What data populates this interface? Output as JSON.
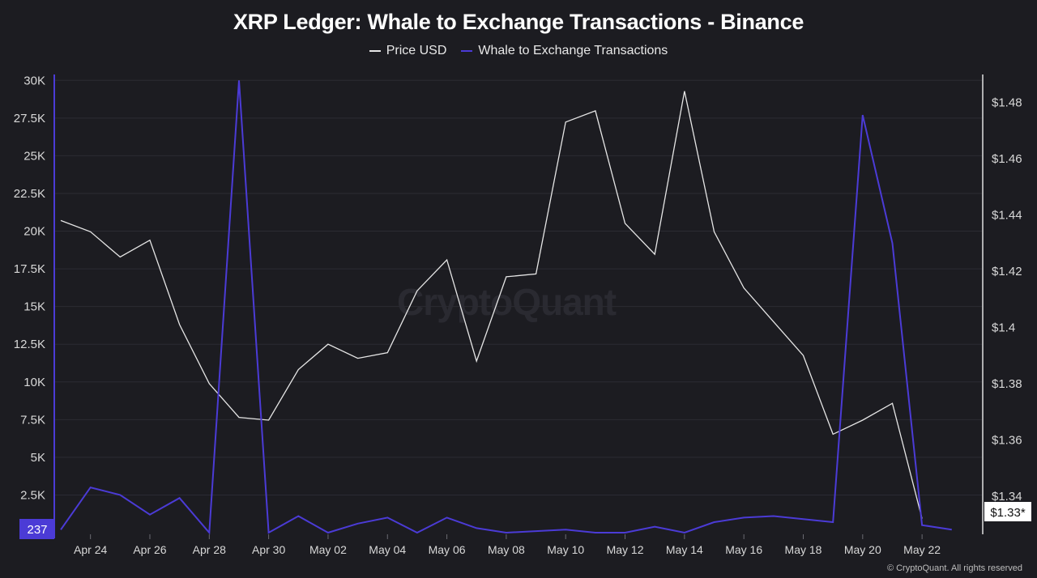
{
  "header": {
    "title": "XRP Ledger: Whale to Exchange Transactions - Binance"
  },
  "legend": {
    "items": [
      {
        "label": "Price USD",
        "color": "#e6e6e6"
      },
      {
        "label": "Whale to Exchange Transactions",
        "color": "#4b3bd6"
      }
    ]
  },
  "watermark": "CryptoQuant",
  "credit": "© CryptoQuant. All rights reserved",
  "chart_data": {
    "type": "line",
    "title": "XRP Ledger: Whale to Exchange Transactions - Binance",
    "xlabel": "",
    "ylabel": "",
    "x": [
      "Apr 23",
      "Apr 24",
      "Apr 25",
      "Apr 26",
      "Apr 27",
      "Apr 28",
      "Apr 29",
      "Apr 30",
      "May 01",
      "May 02",
      "May 03",
      "May 04",
      "May 05",
      "May 06",
      "May 07",
      "May 08",
      "May 09",
      "May 10",
      "May 11",
      "May 12",
      "May 13",
      "May 14",
      "May 15",
      "May 16",
      "May 17",
      "May 18",
      "May 19",
      "May 20",
      "May 21",
      "May 22",
      "May 23"
    ],
    "x_tick_labels": [
      "Apr 24",
      "Apr 26",
      "Apr 28",
      "Apr 30",
      "May 02",
      "May 04",
      "May 06",
      "May 08",
      "May 10",
      "May 12",
      "May 14",
      "May 16",
      "May 18",
      "May 20",
      "May 22"
    ],
    "series": [
      {
        "name": "Price USD",
        "axis": "right",
        "color": "#e6e6e6",
        "values": [
          1.438,
          1.434,
          1.425,
          1.431,
          1.401,
          1.38,
          1.368,
          1.367,
          1.385,
          1.394,
          1.389,
          1.391,
          1.413,
          1.424,
          1.388,
          1.418,
          1.419,
          1.473,
          1.477,
          1.437,
          1.426,
          1.484,
          1.434,
          1.414,
          1.402,
          1.39,
          1.362,
          1.367,
          1.373,
          1.332,
          null
        ]
      },
      {
        "name": "Whale to Exchange Transactions",
        "axis": "left",
        "color": "#4b3bd6",
        "values": [
          200,
          3000,
          2500,
          1200,
          2300,
          0,
          30000,
          0,
          1100,
          0,
          600,
          1000,
          0,
          1000,
          300,
          0,
          100,
          200,
          0,
          0,
          400,
          0,
          700,
          1000,
          1100,
          900,
          700,
          27700,
          19200,
          500,
          200
        ]
      }
    ],
    "y_left": {
      "ylim": [
        0,
        30500
      ],
      "ticks": [
        2500,
        5000,
        7500,
        10000,
        12500,
        15000,
        17500,
        20000,
        22500,
        25000,
        27500,
        30000
      ],
      "tick_labels": [
        "2.5K",
        "5K",
        "7.5K",
        "10K",
        "12.5K",
        "15K",
        "17.5K",
        "20K",
        "22.5K",
        "25K",
        "27.5K",
        "30K"
      ],
      "current_value_label": "237"
    },
    "y_right": {
      "ylim": [
        1.327,
        1.4905
      ],
      "ticks": [
        1.34,
        1.36,
        1.38,
        1.4,
        1.42,
        1.44,
        1.46,
        1.48
      ],
      "tick_labels": [
        "$1.34",
        "$1.36",
        "$1.38",
        "$1.4",
        "$1.42",
        "$1.44",
        "$1.46",
        "$1.48"
      ],
      "current_value_label": "$1.33*"
    },
    "grid": true,
    "legend_position": "top-center"
  }
}
